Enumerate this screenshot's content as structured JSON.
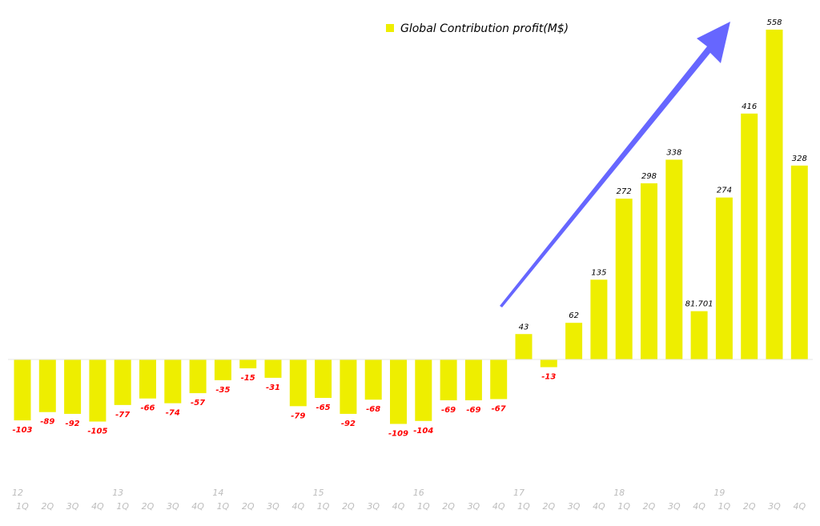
{
  "chart_data": {
    "type": "bar",
    "title": "",
    "xlabel": "",
    "ylabel": "",
    "ylim": [
      -160,
      560
    ],
    "grid": false,
    "legend_position": "top-center",
    "series": [
      {
        "name": "Global Contribution profit(M$)",
        "color": "#EEEE00",
        "values": [
          -103,
          -89,
          -92,
          -105,
          -77,
          -66,
          -74,
          -57,
          -35,
          -15,
          -31,
          -79,
          -65,
          -92,
          -68,
          -109,
          -104,
          -69,
          -69,
          -67,
          43,
          -13,
          62,
          135,
          272,
          298,
          338,
          81.701,
          274,
          416,
          558,
          328
        ],
        "labels": [
          "-103",
          "-89",
          "-92",
          "-105",
          "-77",
          "-66",
          "-74",
          "-57",
          "-35",
          "-15",
          "-31",
          "-79",
          "-65",
          "-92",
          "-68",
          "-109",
          "-104",
          "-69",
          "-69",
          "-67",
          "43",
          "-13",
          "62",
          "135",
          "272",
          "298",
          "338",
          "81.701",
          "274",
          "416",
          "558",
          "328"
        ]
      }
    ],
    "categories": [
      "1Q",
      "2Q",
      "3Q",
      "4Q",
      "1Q",
      "2Q",
      "3Q",
      "4Q",
      "1Q",
      "2Q",
      "3Q",
      "4Q",
      "1Q",
      "2Q",
      "3Q",
      "4Q",
      "1Q",
      "2Q",
      "3Q",
      "4Q",
      "1Q",
      "2Q",
      "3Q",
      "4Q",
      "1Q",
      "2Q",
      "3Q",
      "4Q",
      "1Q",
      "2Q",
      "3Q",
      "4Q"
    ],
    "years": [
      "12",
      "13",
      "14",
      "15",
      "16",
      "17",
      "18",
      "19"
    ],
    "negative_label_color": "#FF0000",
    "positive_label_color": "#000000",
    "annotation": {
      "type": "arrow",
      "color": "#6666FF",
      "meaning": "upward trend"
    }
  }
}
